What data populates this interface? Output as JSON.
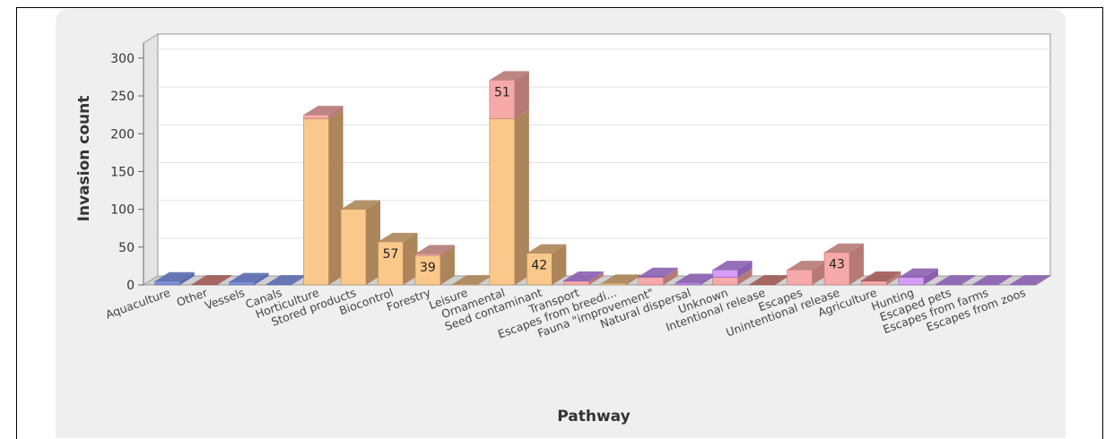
{
  "chart_data": {
    "type": "bar",
    "stacked": true,
    "3d": true,
    "xlabel": "Pathway",
    "ylabel": "Invasion count",
    "ylim": [
      0,
      320
    ],
    "yticks": [
      0,
      50,
      100,
      150,
      200,
      250,
      300
    ],
    "grid": true,
    "categories": [
      "Aquaculture",
      "Other",
      "Vessels",
      "Canals",
      "Horticulture",
      "Stored products",
      "Biocontrol",
      "Forestry",
      "Leisure",
      "Ornamental",
      "Seed contaminant",
      "Transport",
      "Escapes from breedi...",
      "Fauna \"improvement\"",
      "Natural dispersal",
      "Unknown",
      "Intentional release",
      "Escapes",
      "Unintentional release",
      "Agriculture",
      "Hunting",
      "Escaped pets",
      "Escapes from farms",
      "Escapes from zoos"
    ],
    "segments": [
      [
        {
          "value": 5,
          "color": "#7d8fd6",
          "side": "#5a6bb0"
        }
      ],
      [
        {
          "value": 1,
          "color": "#c07a74",
          "side": "#a05a55"
        }
      ],
      [
        {
          "value": 4,
          "color": "#7d8fd6",
          "side": "#5a6bb0"
        }
      ],
      [
        {
          "value": 1,
          "color": "#7d8fd6",
          "side": "#5a6bb0"
        }
      ],
      [
        {
          "value": 220,
          "color": "#f9c88a",
          "side": "#ad855a"
        },
        {
          "value": 5,
          "color": "#f7a8a8",
          "side": "#b57a76"
        }
      ],
      [
        {
          "value": 100,
          "color": "#f9c88a",
          "side": "#ad855a"
        }
      ],
      [
        {
          "value": 57,
          "color": "#f9c88a",
          "side": "#ad855a",
          "label": "57"
        }
      ],
      [
        {
          "value": 39,
          "color": "#f9c88a",
          "side": "#ad855a",
          "label": "39"
        },
        {
          "value": 2,
          "color": "#f7a8a8",
          "side": "#b57a76"
        }
      ],
      [
        {
          "value": 1,
          "color": "#f9c88a",
          "side": "#ad855a"
        }
      ],
      [
        {
          "value": 220,
          "color": "#f9c88a",
          "side": "#ad855a"
        },
        {
          "value": 51,
          "color": "#f7a8a8",
          "side": "#b57a76",
          "label": "51"
        }
      ],
      [
        {
          "value": 42,
          "color": "#f9c88a",
          "side": "#ad855a",
          "label": "42"
        }
      ],
      [
        {
          "value": 5,
          "color": "#f7a8a8",
          "side": "#b57a76"
        },
        {
          "value": 1,
          "color": "#b884e0",
          "side": "#8a5fb0"
        }
      ],
      [
        {
          "value": 2,
          "color": "#f9c88a",
          "side": "#ad855a"
        }
      ],
      [
        {
          "value": 10,
          "color": "#f7a8a8",
          "side": "#b57a76"
        },
        {
          "value": 1,
          "color": "#b884e0",
          "side": "#8a5fb0"
        }
      ],
      [
        {
          "value": 3,
          "color": "#b884e0",
          "side": "#8a5fb0"
        }
      ],
      [
        {
          "value": 10,
          "color": "#f7a8a8",
          "side": "#b57a76"
        },
        {
          "value": 10,
          "color": "#d79cf5",
          "side": "#8a5fb0"
        }
      ],
      [
        {
          "value": 1,
          "color": "#c07a74",
          "side": "#a05a55"
        }
      ],
      [
        {
          "value": 20,
          "color": "#f7a8a8",
          "side": "#b57a76"
        }
      ],
      [
        {
          "value": 43,
          "color": "#f7a8a8",
          "side": "#b57a76",
          "label": "43"
        }
      ],
      [
        {
          "value": 5,
          "color": "#f7a8a8",
          "side": "#b57a76"
        },
        {
          "value": 1,
          "color": "#c07a74",
          "side": "#a05a55"
        }
      ],
      [
        {
          "value": 10,
          "color": "#d79cf5",
          "side": "#8a5fb0"
        }
      ],
      [
        {
          "value": 1,
          "color": "#b884e0",
          "side": "#8a5fb0"
        }
      ],
      [
        {
          "value": 1,
          "color": "#b884e0",
          "side": "#8a5fb0"
        }
      ],
      [
        {
          "value": 1,
          "color": "#b884e0",
          "side": "#8a5fb0"
        }
      ]
    ]
  }
}
